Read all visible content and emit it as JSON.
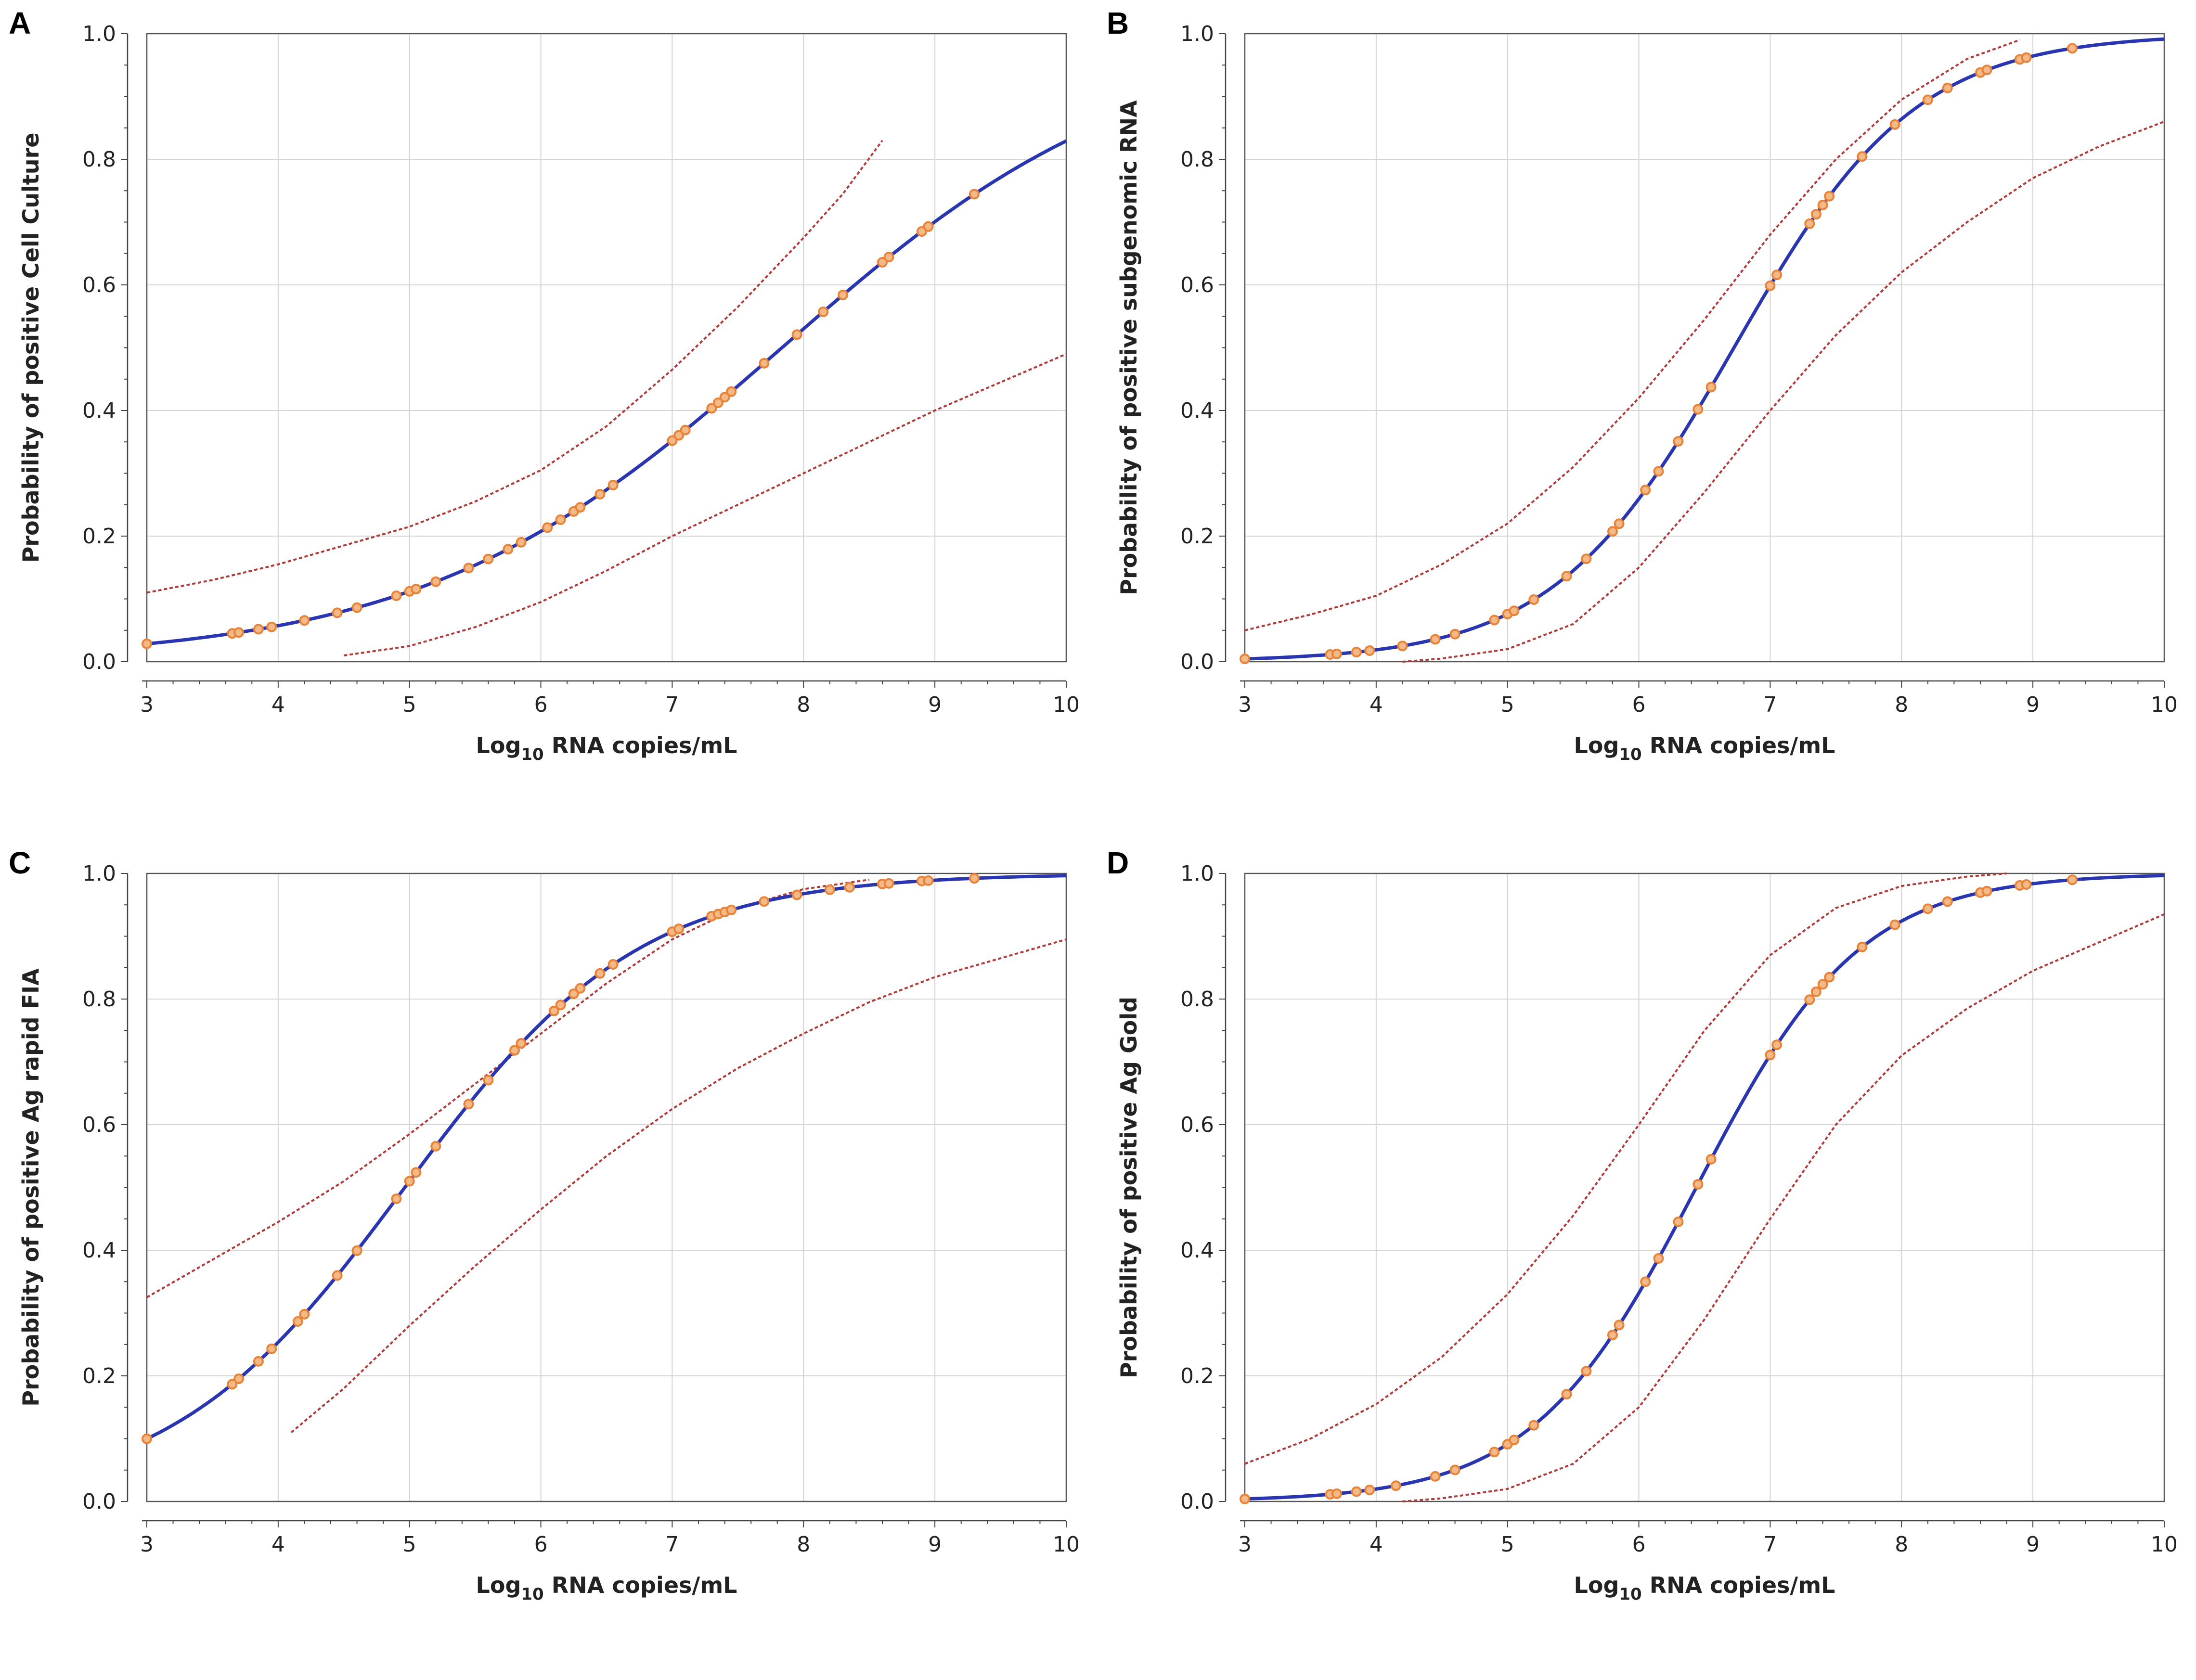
{
  "chart_data": [
    {
      "type": "line",
      "panel_label": "A",
      "xlabel_main": "Log",
      "xlabel_sub": "10",
      "xlabel_rest": " RNA copies/mL",
      "ylabel": "Probability of positive Cell Culture",
      "xlim": [
        3,
        10
      ],
      "ylim": [
        0,
        1.0
      ],
      "x_ticks": [
        "3",
        "4",
        "5",
        "6",
        "7",
        "8",
        "9",
        "10"
      ],
      "y_ticks": [
        "0.0",
        "0.2",
        "0.4",
        "0.6",
        "0.8",
        "1.0"
      ],
      "fit": {
        "intercept": -5.72,
        "slope": 0.73
      },
      "ci_upper": [
        [
          3,
          0.11
        ],
        [
          3.5,
          0.13
        ],
        [
          4,
          0.155
        ],
        [
          4.5,
          0.185
        ],
        [
          5,
          0.215
        ],
        [
          5.5,
          0.255
        ],
        [
          6,
          0.305
        ],
        [
          6.5,
          0.375
        ],
        [
          7,
          0.465
        ],
        [
          7.5,
          0.565
        ],
        [
          8,
          0.675
        ],
        [
          8.3,
          0.745
        ],
        [
          8.6,
          0.83
        ]
      ],
      "ci_lower": [
        [
          4.5,
          0.01
        ],
        [
          5,
          0.025
        ],
        [
          5.5,
          0.055
        ],
        [
          6,
          0.095
        ],
        [
          6.5,
          0.145
        ],
        [
          7,
          0.2
        ],
        [
          7.5,
          0.25
        ],
        [
          8,
          0.3
        ],
        [
          8.5,
          0.35
        ],
        [
          9,
          0.4
        ],
        [
          9.5,
          0.445
        ],
        [
          10,
          0.49
        ]
      ],
      "points_x": [
        3.0,
        3.65,
        3.7,
        3.85,
        3.95,
        4.2,
        4.45,
        4.6,
        4.9,
        5.0,
        5.05,
        5.2,
        5.45,
        5.6,
        5.75,
        5.85,
        6.05,
        6.15,
        6.25,
        6.3,
        6.45,
        6.55,
        7.0,
        7.05,
        7.1,
        7.3,
        7.35,
        7.4,
        7.45,
        7.7,
        7.95,
        8.15,
        8.3,
        8.6,
        8.65,
        8.9,
        8.95,
        9.3
      ]
    },
    {
      "type": "line",
      "panel_label": "B",
      "xlabel_main": "Log",
      "xlabel_sub": "10",
      "xlabel_rest": " RNA copies/mL",
      "ylabel": "Probability of positive subgenomic RNA",
      "xlim": [
        3,
        10
      ],
      "ylim": [
        0,
        1.0
      ],
      "x_ticks": [
        "3",
        "4",
        "5",
        "6",
        "7",
        "8",
        "9",
        "10"
      ],
      "y_ticks": [
        "0.0",
        "0.2",
        "0.4",
        "0.6",
        "0.8",
        "1.0"
      ],
      "fit": {
        "intercept": -9.75,
        "slope": 1.45
      },
      "ci_upper": [
        [
          3,
          0.05
        ],
        [
          3.5,
          0.075
        ],
        [
          4,
          0.105
        ],
        [
          4.5,
          0.155
        ],
        [
          5,
          0.22
        ],
        [
          5.5,
          0.31
        ],
        [
          6,
          0.42
        ],
        [
          6.5,
          0.545
        ],
        [
          7,
          0.68
        ],
        [
          7.5,
          0.8
        ],
        [
          8,
          0.895
        ],
        [
          8.5,
          0.96
        ],
        [
          8.9,
          0.99
        ]
      ],
      "ci_lower": [
        [
          4.2,
          0.0
        ],
        [
          4.5,
          0.005
        ],
        [
          5,
          0.02
        ],
        [
          5.5,
          0.06
        ],
        [
          6,
          0.15
        ],
        [
          6.5,
          0.27
        ],
        [
          7,
          0.4
        ],
        [
          7.5,
          0.52
        ],
        [
          8,
          0.62
        ],
        [
          8.5,
          0.7
        ],
        [
          9,
          0.77
        ],
        [
          9.5,
          0.82
        ],
        [
          10,
          0.86
        ]
      ],
      "points_x": [
        3.0,
        3.65,
        3.7,
        3.85,
        3.95,
        4.2,
        4.45,
        4.6,
        4.9,
        5.0,
        5.05,
        5.2,
        5.45,
        5.6,
        5.8,
        5.85,
        6.05,
        6.15,
        6.3,
        6.45,
        6.55,
        7.0,
        7.05,
        7.3,
        7.35,
        7.4,
        7.45,
        7.7,
        7.95,
        8.2,
        8.35,
        8.6,
        8.65,
        8.9,
        8.95,
        9.3
      ]
    },
    {
      "type": "line",
      "panel_label": "C",
      "xlabel_main": "Log",
      "xlabel_sub": "10",
      "xlabel_rest": " RNA copies/mL",
      "ylabel": "Probability of positive Ag rapid FIA",
      "xlim": [
        3,
        10
      ],
      "ylim": [
        0,
        1.0
      ],
      "x_ticks": [
        "3",
        "4",
        "5",
        "6",
        "7",
        "8",
        "9",
        "10"
      ],
      "y_ticks": [
        "0.0",
        "0.2",
        "0.4",
        "0.6",
        "0.8",
        "1.0"
      ],
      "fit": {
        "intercept": -5.56,
        "slope": 1.12
      },
      "ci_upper": [
        [
          3,
          0.325
        ],
        [
          3.5,
          0.385
        ],
        [
          4,
          0.445
        ],
        [
          4.5,
          0.51
        ],
        [
          5,
          0.585
        ],
        [
          5.5,
          0.665
        ],
        [
          6,
          0.745
        ],
        [
          6.5,
          0.825
        ],
        [
          7,
          0.895
        ],
        [
          7.5,
          0.945
        ],
        [
          8,
          0.975
        ],
        [
          8.5,
          0.99
        ]
      ],
      "ci_lower": [
        [
          4.1,
          0.11
        ],
        [
          4.5,
          0.18
        ],
        [
          5,
          0.28
        ],
        [
          5.5,
          0.375
        ],
        [
          6,
          0.465
        ],
        [
          6.5,
          0.55
        ],
        [
          7,
          0.625
        ],
        [
          7.5,
          0.69
        ],
        [
          8,
          0.745
        ],
        [
          8.5,
          0.795
        ],
        [
          9,
          0.835
        ],
        [
          9.5,
          0.865
        ],
        [
          10,
          0.895
        ]
      ],
      "points_x": [
        3.0,
        3.65,
        3.7,
        3.85,
        3.95,
        4.15,
        4.2,
        4.45,
        4.6,
        4.9,
        5.0,
        5.05,
        5.2,
        5.45,
        5.6,
        5.8,
        5.85,
        6.1,
        6.15,
        6.25,
        6.3,
        6.45,
        6.55,
        7.0,
        7.05,
        7.3,
        7.35,
        7.4,
        7.45,
        7.7,
        7.95,
        8.2,
        8.35,
        8.6,
        8.65,
        8.9,
        8.95,
        9.3
      ]
    },
    {
      "type": "line",
      "panel_label": "D",
      "xlabel_main": "Log",
      "xlabel_sub": "10",
      "xlabel_rest": " RNA copies/mL",
      "ylabel": "Probability of positive Ag Gold",
      "xlim": [
        3,
        10
      ],
      "ylim": [
        0,
        1.0
      ],
      "x_ticks": [
        "3",
        "4",
        "5",
        "6",
        "7",
        "8",
        "9",
        "10"
      ],
      "y_ticks": [
        "0.0",
        "0.2",
        "0.4",
        "0.6",
        "0.8",
        "1.0"
      ],
      "fit": {
        "intercept": -10.3,
        "slope": 1.6
      },
      "ci_upper": [
        [
          3,
          0.06
        ],
        [
          3.5,
          0.1
        ],
        [
          4,
          0.155
        ],
        [
          4.5,
          0.23
        ],
        [
          5,
          0.33
        ],
        [
          5.5,
          0.455
        ],
        [
          6,
          0.6
        ],
        [
          6.5,
          0.75
        ],
        [
          7,
          0.87
        ],
        [
          7.5,
          0.945
        ],
        [
          8,
          0.98
        ],
        [
          8.5,
          0.995
        ],
        [
          8.8,
          1.0
        ]
      ],
      "ci_lower": [
        [
          4.2,
          0.0
        ],
        [
          4.5,
          0.005
        ],
        [
          5,
          0.02
        ],
        [
          5.5,
          0.06
        ],
        [
          6,
          0.15
        ],
        [
          6.5,
          0.29
        ],
        [
          7,
          0.45
        ],
        [
          7.5,
          0.6
        ],
        [
          8,
          0.71
        ],
        [
          8.5,
          0.785
        ],
        [
          9,
          0.845
        ],
        [
          9.5,
          0.89
        ],
        [
          10,
          0.935
        ]
      ],
      "points_x": [
        3.0,
        3.65,
        3.7,
        3.85,
        3.95,
        4.15,
        4.45,
        4.6,
        4.9,
        5.0,
        5.05,
        5.2,
        5.45,
        5.6,
        5.8,
        5.85,
        6.05,
        6.15,
        6.3,
        6.45,
        6.55,
        7.0,
        7.05,
        7.3,
        7.35,
        7.4,
        7.45,
        7.7,
        7.95,
        8.2,
        8.35,
        8.6,
        8.65,
        8.9,
        8.95,
        9.3
      ]
    }
  ]
}
